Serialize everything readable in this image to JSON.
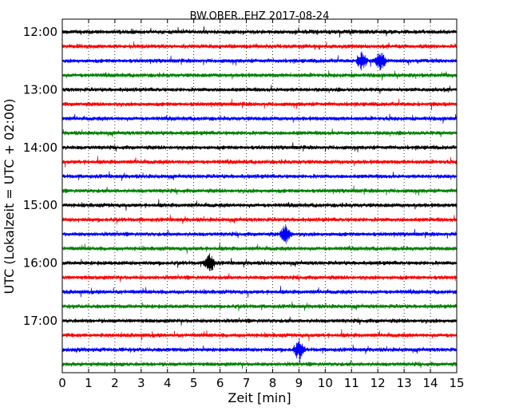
{
  "chart_data": {
    "type": "line",
    "title": "BW.OBER..EHZ 2017-08-24",
    "xlabel": "Zeit  [min]",
    "ylabel": "UTC (Lokalzeit = UTC + 02:00)",
    "xlim": [
      0,
      15
    ],
    "x_ticks": [
      "0",
      "1",
      "2",
      "3",
      "4",
      "5",
      "6",
      "7",
      "8",
      "9",
      "10",
      "11",
      "12",
      "13",
      "14",
      "15"
    ],
    "y_ticks": [
      "12:00",
      "13:00",
      "14:00",
      "15:00",
      "16:00",
      "17:00"
    ],
    "grid": "vertical dotted",
    "series_colors": [
      "#000000",
      "#ff0000",
      "#0000ff",
      "#008000"
    ],
    "trace_start_times": [
      "12:00",
      "12:15",
      "12:30",
      "12:45",
      "13:00",
      "13:15",
      "13:30",
      "13:45",
      "14:00",
      "14:15",
      "14:30",
      "14:45",
      "15:00",
      "15:15",
      "15:30",
      "15:45",
      "16:00",
      "16:15",
      "16:30",
      "16:45",
      "17:00",
      "17:15",
      "17:30",
      "17:45"
    ],
    "trace_minutes_per_row": 15,
    "events": [
      {
        "row_start": "12:30",
        "x_min": 11.4,
        "label": ""
      },
      {
        "row_start": "12:30",
        "x_min": 12.1,
        "label": ""
      },
      {
        "row_start": "17:30",
        "x_min": 9.0,
        "label": ""
      },
      {
        "row_start": "15:30",
        "x_min": 8.5,
        "label": ""
      },
      {
        "row_start": "16:00",
        "x_min": 5.6,
        "label": ""
      }
    ]
  }
}
